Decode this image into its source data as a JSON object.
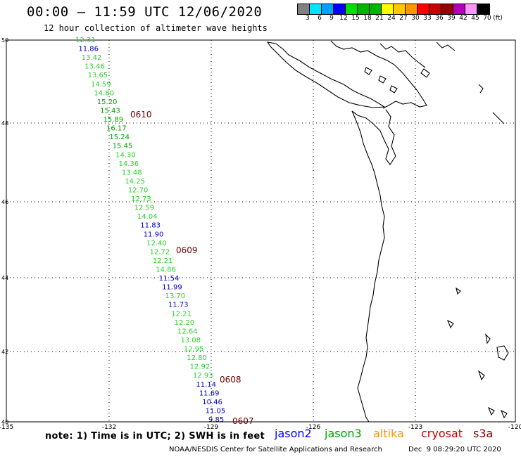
{
  "header": {
    "title": "00:00 — 11:59 UTC 12/06/2020",
    "subtitle": "12 hour collection of altimeter wave heights"
  },
  "colorbar": {
    "unit": "(ft)",
    "colors": [
      "#808080",
      "#00e5ff",
      "#00a0ff",
      "#0000ff",
      "#00e000",
      "#00b400",
      "#00b400",
      "#ffff00",
      "#ffc800",
      "#ff9600",
      "#ff0000",
      "#c80000",
      "#960000",
      "#b400b4",
      "#ff96ff",
      "#000000"
    ],
    "ticks": [
      "3",
      "6",
      "9",
      "12",
      "15",
      "18",
      "21",
      "24",
      "27",
      "30",
      "33",
      "36",
      "39",
      "42",
      "45",
      "70"
    ]
  },
  "map": {
    "lon_labels": [
      "-135",
      "-132",
      "-129",
      "-126",
      "-123",
      "-120"
    ],
    "lat_labels": [
      "50",
      "48",
      "46",
      "44",
      "42",
      "40"
    ]
  },
  "pass_labels": [
    "0610",
    "0609",
    "0608",
    "0607"
  ],
  "wave_heights": [
    {
      "v": "12.31",
      "c": "g"
    },
    {
      "v": "11.86",
      "c": "b"
    },
    {
      "v": "13.42",
      "c": "g"
    },
    {
      "v": "13.46",
      "c": "g"
    },
    {
      "v": "13.65",
      "c": "g"
    },
    {
      "v": "14.59",
      "c": "g"
    },
    {
      "v": "14.80",
      "c": "g"
    },
    {
      "v": "15.20",
      "c": "d"
    },
    {
      "v": "15.43",
      "c": "d"
    },
    {
      "v": "15.89",
      "c": "d"
    },
    {
      "v": "16.17",
      "c": "d"
    },
    {
      "v": "15.24",
      "c": "d"
    },
    {
      "v": "15.45",
      "c": "d"
    },
    {
      "v": "14.30",
      "c": "g"
    },
    {
      "v": "14.36",
      "c": "g"
    },
    {
      "v": "13.48",
      "c": "g"
    },
    {
      "v": "14.25",
      "c": "g"
    },
    {
      "v": "12.70",
      "c": "g"
    },
    {
      "v": "12.73",
      "c": "g"
    },
    {
      "v": "12.59",
      "c": "g"
    },
    {
      "v": "14.04",
      "c": "g"
    },
    {
      "v": "11.83",
      "c": "b"
    },
    {
      "v": "11.90",
      "c": "b"
    },
    {
      "v": "12.40",
      "c": "g"
    },
    {
      "v": "12.72",
      "c": "g"
    },
    {
      "v": "12.21",
      "c": "g"
    },
    {
      "v": "14.86",
      "c": "g"
    },
    {
      "v": "11.54",
      "c": "b"
    },
    {
      "v": "11.99",
      "c": "b"
    },
    {
      "v": "13.70",
      "c": "g"
    },
    {
      "v": "11.73",
      "c": "b"
    },
    {
      "v": "12.21",
      "c": "g"
    },
    {
      "v": "12.20",
      "c": "g"
    },
    {
      "v": "12.64",
      "c": "g"
    },
    {
      "v": "13.08",
      "c": "g"
    },
    {
      "v": "12.95",
      "c": "g"
    },
    {
      "v": "12.80",
      "c": "g"
    },
    {
      "v": "12.92",
      "c": "g"
    },
    {
      "v": "12.93",
      "c": "g"
    },
    {
      "v": "11.14",
      "c": "b"
    },
    {
      "v": "11.69",
      "c": "b"
    },
    {
      "v": "10.46",
      "c": "b"
    },
    {
      "v": "11.05",
      "c": "b"
    },
    {
      "v": "9.85",
      "c": "b"
    }
  ],
  "footer": {
    "note": "note: 1) Time is in UTC; 2) SWH is in feet",
    "legend": [
      {
        "label": "jason2",
        "color": "#0000ff"
      },
      {
        "label": "jason3",
        "color": "#00a000"
      },
      {
        "label": "altika",
        "color": "#ff9600"
      },
      {
        "label": "cryosat",
        "color": "#c80000"
      },
      {
        "label": "s3a",
        "color": "#800000"
      }
    ],
    "credit": "NOAA/NESDIS Center for Satellite Applications and Research",
    "timestamp": "Dec  9 08:29:20 UTC 2020"
  }
}
